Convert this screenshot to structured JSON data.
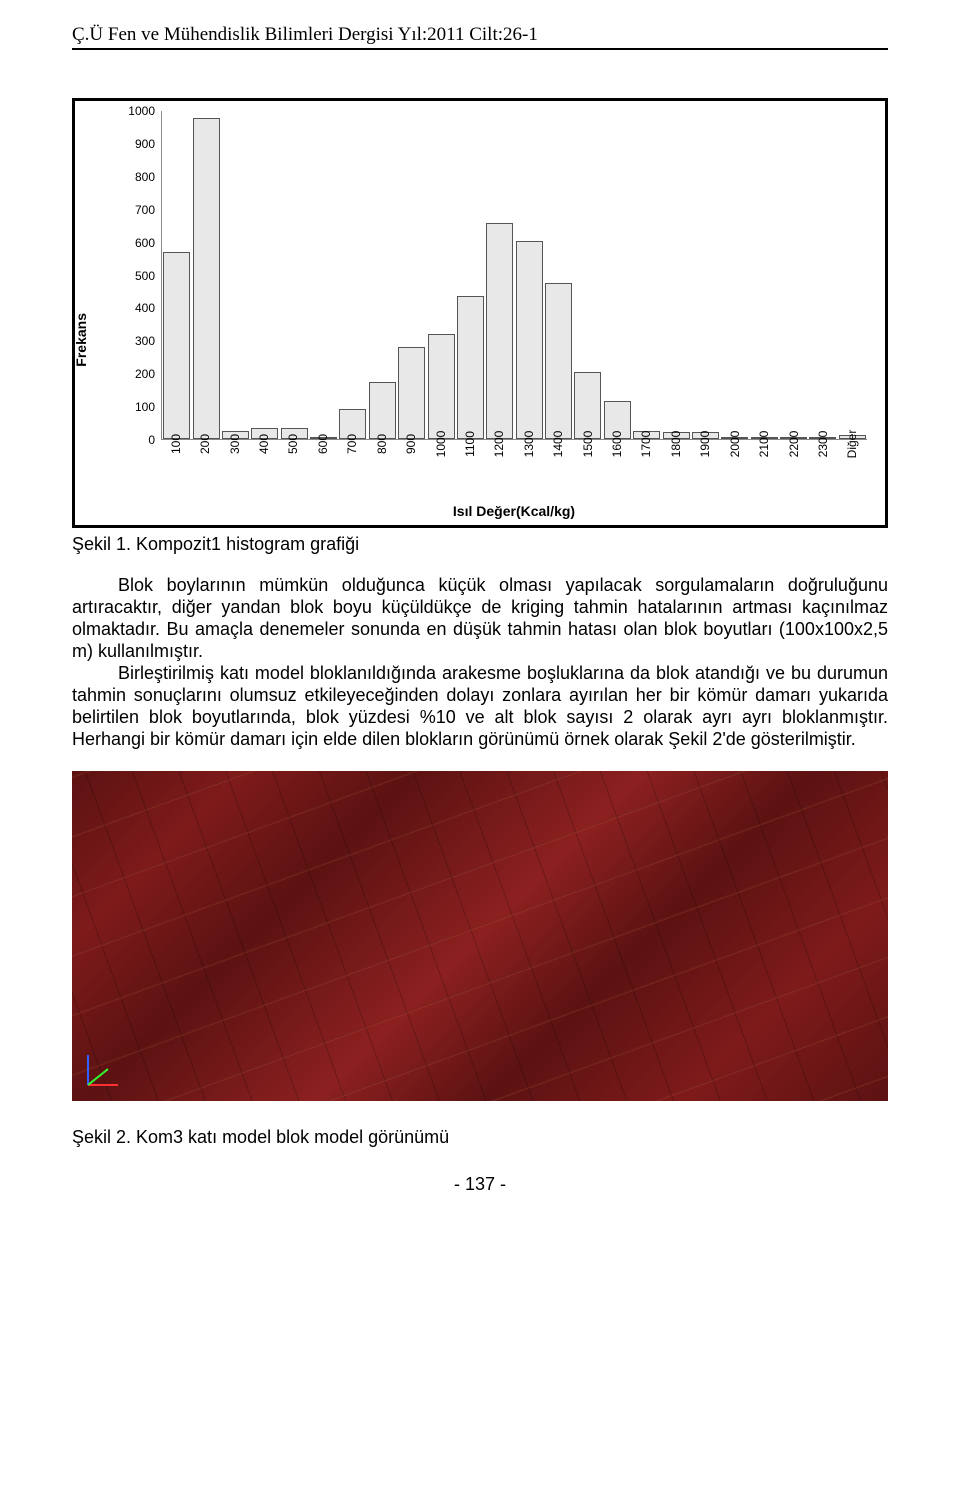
{
  "header": {
    "journal_line": "Ç.Ü Fen ve  Mühendislik Bilimleri Dergisi Yıl:2011  Cilt:26-1"
  },
  "histogram": {
    "type": "bar",
    "y_label": "Frekans",
    "x_label": "Isıl Değer(Kcal/kg)",
    "ylim": [
      0,
      1000
    ],
    "ytick_step": 100,
    "y_ticks": [
      0,
      100,
      200,
      300,
      400,
      500,
      600,
      700,
      800,
      900,
      1000
    ],
    "categories": [
      "100",
      "200",
      "300",
      "400",
      "500",
      "600",
      "700",
      "800",
      "900",
      "1000",
      "1100",
      "1200",
      "1300",
      "1400",
      "1500",
      "1600",
      "1700",
      "1800",
      "1900",
      "2000",
      "2100",
      "2200",
      "2300",
      "Diğer"
    ],
    "values": [
      570,
      980,
      25,
      35,
      35,
      6,
      90,
      175,
      280,
      320,
      435,
      660,
      605,
      475,
      205,
      115,
      25,
      22,
      22,
      7,
      2,
      2,
      3,
      12
    ],
    "bar_fill": "#e8e8e8",
    "bar_border": "#555555",
    "axis_color": "#888888",
    "font_size_ticks": 12,
    "font_size_labels": 14,
    "background_color": "#ffffff",
    "frame_border_color": "#000000",
    "frame_border_width": 3
  },
  "captions": {
    "fig1": "Şekil 1. Kompozit1 histogram grafiği",
    "fig2": "Şekil 2. Kom3 katı model blok model görünümü"
  },
  "body": {
    "p1": "Blok boylarının mümkün olduğunca küçük olması yapılacak sorgulamaların doğruluğunu artıracaktır, diğer yandan blok boyu küçüldükçe de kriging tahmin hatalarının artması kaçınılmaz olmaktadır. Bu amaçla denemeler sonunda en düşük tahmin hatası olan blok boyutları (100x100x2,5 m) kullanılmıştır.",
    "p2": "Birleştirilmiş katı model bloklanıldığında arakesme boşluklarına da blok atandığı ve bu durumun tahmin sonuçlarını olumsuz etkileyeceğinden dolayı zonlara ayırılan her bir kömür damarı yukarıda belirtilen blok boyutlarında, blok yüzdesi %10 ve alt blok sayısı 2 olarak ayrı ayrı bloklanmıştır. Herhangi bir kömür damarı için elde dilen blokların görünümü örnek olarak Şekil 2'de gösterilmiştir."
  },
  "fig2_model": {
    "description": "3D solid block model view",
    "base_colors": [
      "#5c1212",
      "#7e1a1a",
      "#8c2020"
    ],
    "grid_line_color": "rgba(0,0,0,0.28)",
    "highlight_line_color": "rgba(255,120,80,0.14)",
    "axis_gizmo": {
      "x_color": "#ff3030",
      "y_color": "#30ff30",
      "z_color": "#3060ff"
    }
  },
  "page": {
    "number": "- 137 -"
  }
}
